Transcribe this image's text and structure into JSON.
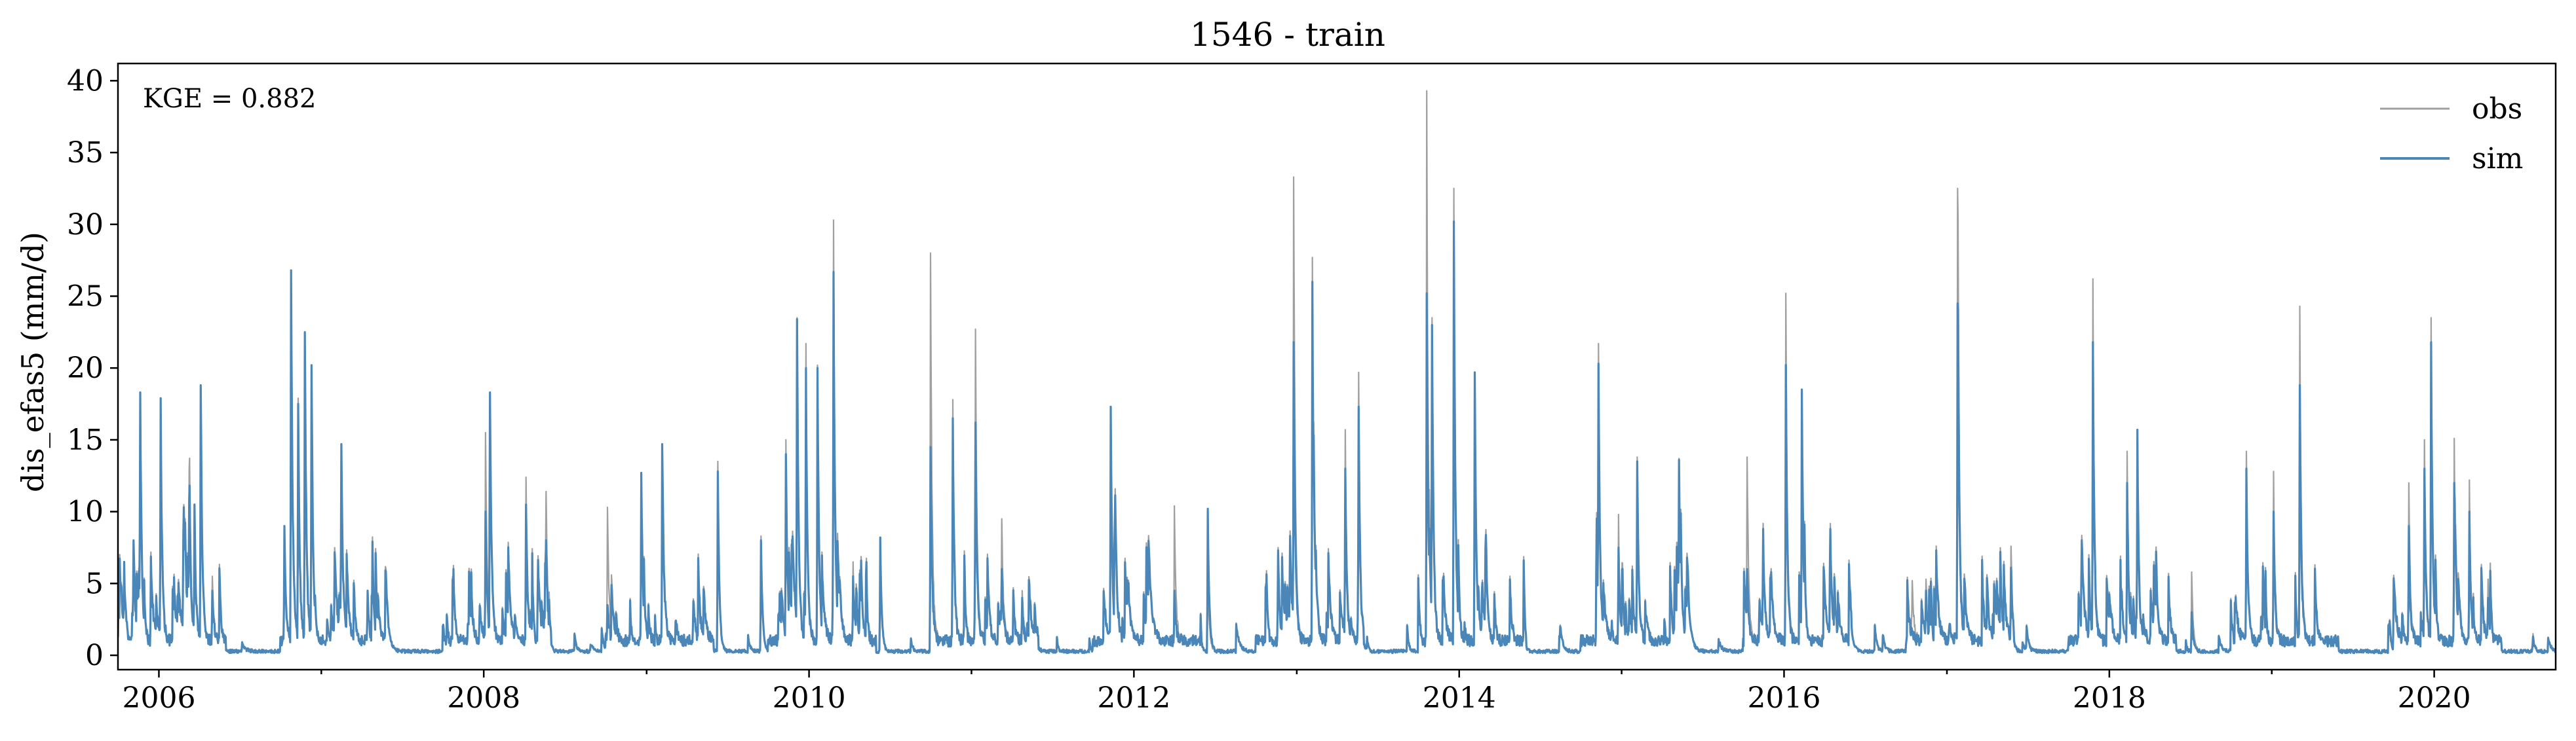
{
  "chart_data": {
    "type": "line",
    "title": "1546 - train",
    "ylabel": "dis_efas5 (mm/d)",
    "xlabel": "",
    "annotation": "KGE = 0.882",
    "xlim": [
      "2005-10-01",
      "2020-09-30"
    ],
    "ylim": [
      -1,
      41.2
    ],
    "xticks": [
      "2006",
      "2008",
      "2010",
      "2012",
      "2014",
      "2016",
      "2018",
      "2020"
    ],
    "yticks": [
      0,
      5,
      10,
      15,
      20,
      25,
      30,
      35,
      40
    ],
    "grid": false,
    "legend": "top-right",
    "series": [
      {
        "name": "obs",
        "color": "#a0a0a0",
        "peaks": [
          [
            "2005-10-15",
            6.5
          ],
          [
            "2005-11-05",
            8.0
          ],
          [
            "2005-11-20",
            18.3
          ],
          [
            "2006-01-05",
            17.9
          ],
          [
            "2006-02-25",
            8.5
          ],
          [
            "2006-03-10",
            13.0
          ],
          [
            "2006-03-22",
            10.5
          ],
          [
            "2006-04-05",
            18.8
          ],
          [
            "2006-05-01",
            5.5
          ],
          [
            "2006-10-10",
            9.0
          ],
          [
            "2006-10-25",
            26.8
          ],
          [
            "2006-11-10",
            17.9
          ],
          [
            "2006-11-25",
            22.5
          ],
          [
            "2006-12-10",
            20.2
          ],
          [
            "2007-02-15",
            14.7
          ],
          [
            "2007-04-15",
            4.5
          ],
          [
            "2008-01-05",
            15.5
          ],
          [
            "2008-01-15",
            18.3
          ],
          [
            "2008-04-05",
            12.4
          ],
          [
            "2008-05-20",
            11.4
          ],
          [
            "2008-10-05",
            10.3
          ],
          [
            "2008-12-20",
            12.7
          ],
          [
            "2009-02-05",
            14.7
          ],
          [
            "2009-06-10",
            13.5
          ],
          [
            "2009-09-15",
            8.3
          ],
          [
            "2009-11-10",
            15.0
          ],
          [
            "2009-12-05",
            23.5
          ],
          [
            "2009-12-25",
            21.7
          ],
          [
            "2010-01-20",
            20.2
          ],
          [
            "2010-02-25",
            30.3
          ],
          [
            "2010-04-10",
            6.5
          ],
          [
            "2010-06-10",
            8.2
          ],
          [
            "2010-10-01",
            28.0
          ],
          [
            "2010-11-20",
            17.8
          ],
          [
            "2011-01-10",
            22.7
          ],
          [
            "2011-03-10",
            9.5
          ],
          [
            "2011-04-25",
            4.5
          ],
          [
            "2011-11-10",
            17.3
          ],
          [
            "2012-04-01",
            10.4
          ],
          [
            "2012-06-15",
            6.3
          ],
          [
            "2012-11-20",
            7.5
          ],
          [
            "2012-12-25",
            33.3
          ],
          [
            "2013-02-05",
            27.7
          ],
          [
            "2013-04-20",
            15.7
          ],
          [
            "2013-05-20",
            19.7
          ],
          [
            "2013-10-20",
            39.3
          ],
          [
            "2013-11-01",
            23.5
          ],
          [
            "2013-12-20",
            32.5
          ],
          [
            "2014-02-05",
            19.7
          ],
          [
            "2014-11-10",
            21.7
          ],
          [
            "2014-12-25",
            9.8
          ],
          [
            "2015-02-05",
            13.8
          ],
          [
            "2015-05-10",
            13.7
          ],
          [
            "2015-10-10",
            13.8
          ],
          [
            "2016-01-05",
            25.2
          ],
          [
            "2016-02-10",
            18.5
          ],
          [
            "2016-10-15",
            5.2
          ],
          [
            "2016-11-15",
            5.3
          ],
          [
            "2017-01-25",
            32.5
          ],
          [
            "2017-05-25",
            7.6
          ],
          [
            "2017-11-25",
            26.2
          ],
          [
            "2018-02-10",
            14.2
          ],
          [
            "2018-03-05",
            15.7
          ],
          [
            "2018-07-05",
            5.8
          ],
          [
            "2018-11-05",
            14.2
          ],
          [
            "2019-01-05",
            12.8
          ],
          [
            "2019-03-05",
            24.3
          ],
          [
            "2019-11-05",
            12.0
          ],
          [
            "2019-12-10",
            15.0
          ],
          [
            "2019-12-25",
            23.5
          ],
          [
            "2020-02-15",
            15.1
          ],
          [
            "2020-03-20",
            12.2
          ],
          [
            "2020-05-01",
            5.3
          ],
          [
            "2020-08-10",
            1.5
          ]
        ]
      },
      {
        "name": "sim",
        "color": "#4a86b8",
        "peaks": [
          [
            "2005-10-15",
            6.5
          ],
          [
            "2005-11-05",
            8.0
          ],
          [
            "2005-11-20",
            18.3
          ],
          [
            "2006-01-05",
            17.9
          ],
          [
            "2006-02-25",
            8.5
          ],
          [
            "2006-03-10",
            10.7
          ],
          [
            "2006-03-22",
            10.5
          ],
          [
            "2006-04-05",
            18.8
          ],
          [
            "2006-05-01",
            4.5
          ],
          [
            "2006-10-10",
            9.0
          ],
          [
            "2006-10-25",
            26.8
          ],
          [
            "2006-11-10",
            17.5
          ],
          [
            "2006-11-25",
            22.5
          ],
          [
            "2006-12-10",
            20.2
          ],
          [
            "2007-02-15",
            14.7
          ],
          [
            "2007-04-15",
            4.5
          ],
          [
            "2008-01-05",
            10.0
          ],
          [
            "2008-01-15",
            18.3
          ],
          [
            "2008-04-05",
            10.5
          ],
          [
            "2008-05-20",
            8.0
          ],
          [
            "2008-10-05",
            3.5
          ],
          [
            "2008-12-20",
            12.7
          ],
          [
            "2009-02-05",
            14.7
          ],
          [
            "2009-06-10",
            12.8
          ],
          [
            "2009-09-15",
            8.0
          ],
          [
            "2009-11-10",
            14.0
          ],
          [
            "2009-12-05",
            23.4
          ],
          [
            "2009-12-25",
            20.0
          ],
          [
            "2010-01-20",
            20.0
          ],
          [
            "2010-02-25",
            26.7
          ],
          [
            "2010-04-10",
            5.5
          ],
          [
            "2010-06-10",
            8.2
          ],
          [
            "2010-10-01",
            14.5
          ],
          [
            "2010-11-20",
            16.5
          ],
          [
            "2011-01-10",
            16.2
          ],
          [
            "2011-03-10",
            6.0
          ],
          [
            "2011-04-25",
            4.0
          ],
          [
            "2011-11-10",
            17.3
          ],
          [
            "2012-04-01",
            4.5
          ],
          [
            "2012-06-15",
            10.2
          ],
          [
            "2012-11-20",
            7.3
          ],
          [
            "2012-12-25",
            21.8
          ],
          [
            "2013-02-05",
            26.0
          ],
          [
            "2013-04-20",
            13.0
          ],
          [
            "2013-05-20",
            17.3
          ],
          [
            "2013-10-20",
            25.2
          ],
          [
            "2013-11-01",
            23.0
          ],
          [
            "2013-12-20",
            30.2
          ],
          [
            "2014-02-05",
            19.7
          ],
          [
            "2014-11-10",
            20.3
          ],
          [
            "2014-12-25",
            7.5
          ],
          [
            "2015-02-05",
            13.5
          ],
          [
            "2015-05-10",
            13.6
          ],
          [
            "2015-10-10",
            6.0
          ],
          [
            "2016-01-05",
            20.2
          ],
          [
            "2016-02-10",
            18.5
          ],
          [
            "2016-10-15",
            1.5
          ],
          [
            "2016-11-15",
            4.5
          ],
          [
            "2017-01-25",
            24.5
          ],
          [
            "2017-05-25",
            6.1
          ],
          [
            "2017-11-25",
            21.8
          ],
          [
            "2018-02-10",
            12.0
          ],
          [
            "2018-03-05",
            15.7
          ],
          [
            "2018-07-05",
            3.0
          ],
          [
            "2018-11-05",
            13.0
          ],
          [
            "2019-01-05",
            10.0
          ],
          [
            "2019-03-05",
            18.8
          ],
          [
            "2019-11-05",
            9.0
          ],
          [
            "2019-12-10",
            13.0
          ],
          [
            "2019-12-25",
            21.8
          ],
          [
            "2020-02-15",
            12.0
          ],
          [
            "2020-03-20",
            10.0
          ],
          [
            "2020-05-01",
            4.0
          ],
          [
            "2020-08-10",
            1.3
          ]
        ]
      }
    ]
  }
}
